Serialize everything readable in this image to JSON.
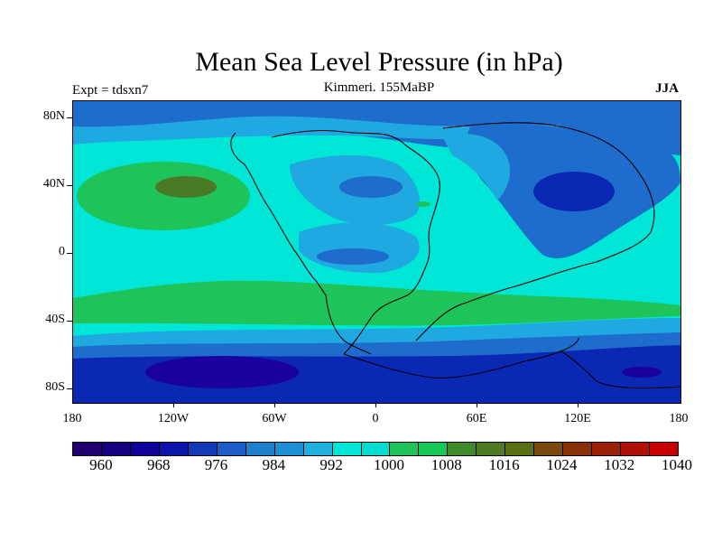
{
  "header": {
    "title": "Mean Sea Level Pressure (in hPa)",
    "expt": "Expt = tdsxn7",
    "period": "Kimmeri. 155MaBP",
    "season": "JJA"
  },
  "axes": {
    "x_labels": [
      "180",
      "120W",
      "60W",
      "0",
      "60E",
      "120E",
      "180"
    ],
    "y_labels": [
      "80N",
      "40N",
      "0",
      "40S",
      "80S"
    ]
  },
  "colorbar": {
    "colors": [
      "#1f0070",
      "#160082",
      "#10009c",
      "#0b14aa",
      "#1238b8",
      "#1b5cc8",
      "#1e80cc",
      "#1f90d8",
      "#20b0e0",
      "#00e6d6",
      "#00ddd0",
      "#20c45a",
      "#18c858",
      "#3f8a2a",
      "#4d7a22",
      "#5a7014",
      "#7a4a0c",
      "#8a3008",
      "#9a2008",
      "#b01008",
      "#c80000"
    ],
    "labels": [
      "960",
      "968",
      "976",
      "984",
      "992",
      "1000",
      "1008",
      "1016",
      "1024",
      "1032",
      "1040"
    ]
  },
  "map_colors": {
    "deep_low": "#1b00a0",
    "low": "#0a28b4",
    "mid_low": "#1e6ccc",
    "sub": "#20a8e0",
    "base": "#00e6d6",
    "high": "#1ec45a",
    "max": "#4a7a26"
  }
}
